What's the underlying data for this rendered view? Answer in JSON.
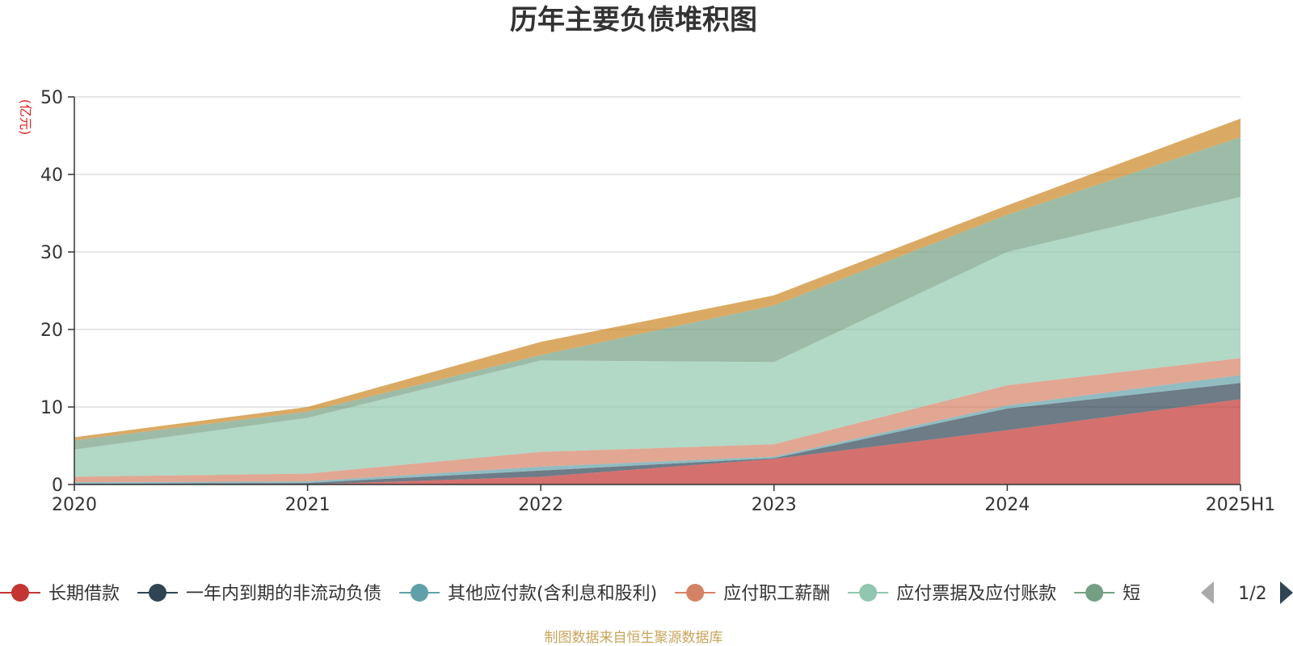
{
  "chart_data": {
    "type": "area",
    "stacked": true,
    "title": "历年主要负债堆积图",
    "unit_label": "(亿元)",
    "source_note": "制图数据来自恒生聚源数据库",
    "categories": [
      "2020",
      "2021",
      "2022",
      "2023",
      "2024",
      "2025H1"
    ],
    "ylim": [
      0,
      50
    ],
    "yticks": [
      0,
      10,
      20,
      30,
      40,
      50
    ],
    "grid": true,
    "legend_position": "bottom",
    "legend_page": "1/2",
    "series": [
      {
        "name": "长期借款",
        "color": "#c23531",
        "values": [
          0,
          0,
          1,
          3.3,
          7,
          11
        ]
      },
      {
        "name": "一年内到期的非流动负债",
        "color": "#2f4554",
        "values": [
          0.1,
          0.2,
          0.8,
          0.1,
          2.8,
          2.1
        ]
      },
      {
        "name": "其他应付款(含利息和股利)",
        "color": "#61a0a8",
        "values": [
          0.2,
          0.2,
          0.5,
          0.2,
          0.4,
          1.0
        ]
      },
      {
        "name": "应付职工薪酬",
        "color": "#d48265",
        "values": [
          0.7,
          1.0,
          1.9,
          1.6,
          2.6,
          2.2
        ]
      },
      {
        "name": "应付票据及应付账款",
        "color": "#91c7ae",
        "values": [
          3.5,
          7.2,
          11.8,
          10.6,
          17.2,
          20.8
        ]
      },
      {
        "name": "短",
        "color": "#749f83",
        "values": [
          1.2,
          0.8,
          0.7,
          7.3,
          4.8,
          7.7
        ]
      },
      {
        "color": "#ca8622",
        "values": [
          0.4,
          0.6,
          1.7,
          1.3,
          1.2,
          2.4
        ]
      }
    ]
  },
  "legend_prev_icon": "triangle-left-icon",
  "legend_next_icon": "triangle-right-icon"
}
